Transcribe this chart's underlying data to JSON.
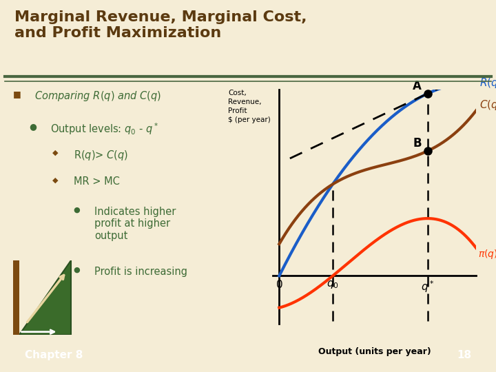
{
  "title_line1": "Marginal Revenue, Marginal Cost,",
  "title_line2": "and Profit Maximization",
  "title_color": "#5B3A10",
  "bg_color": "#F5EDD6",
  "separator_color_thick": "#4A6741",
  "separator_color_thin": "#4A6741",
  "text_color_green": "#3D6B35",
  "text_color_brown": "#7B4A10",
  "ylabel_text": "Cost,\nRevenue,\nProfit\n$ (per year)",
  "xlabel_text": "Output (units per year)",
  "curve_R_color": "#1A5DC8",
  "curve_C_color": "#8B4010",
  "curve_pi_color": "#FF3300",
  "dashed_color": "#111111",
  "point_color": "#111111",
  "chapter_text": "Chapter 8",
  "page_text": "18",
  "bottom_bar_color": "#4A6741"
}
